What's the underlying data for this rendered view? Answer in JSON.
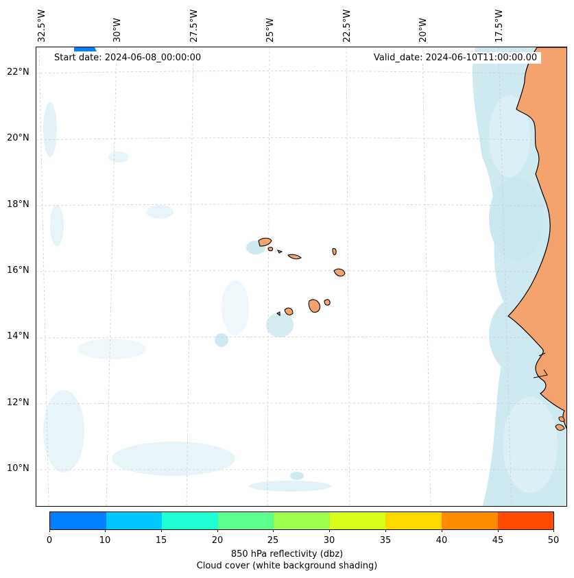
{
  "map": {
    "start_label": "Start date: 2024-06-08_00:00:00",
    "valid_label": "Valid_date: 2024-06-10T11:00:00.00",
    "longitude_labels": [
      "32.5°W",
      "30°W",
      "27.5°W",
      "25°W",
      "22.5°W",
      "20°W",
      "17.5°W"
    ],
    "latitude_labels": [
      "22°N",
      "20°N",
      "18°N",
      "16°N",
      "14°N",
      "12°N",
      "10°N"
    ],
    "land_color": "#f4a36c",
    "cloud_color": "#a9d8e6",
    "gridline_color": "#cccccc"
  },
  "colorbar": {
    "ticks": [
      "0",
      "10",
      "15",
      "20",
      "25",
      "30",
      "35",
      "40",
      "45",
      "50"
    ],
    "colors": [
      "#0080ff",
      "#00c8ff",
      "#1effd4",
      "#5cff8c",
      "#9cff4c",
      "#d8ff1a",
      "#ffd800",
      "#ff8c00",
      "#ff4c00"
    ],
    "label_line1": "850 hPa reflectivity (dbz)",
    "label_line2": "Cloud cover (white background shading)"
  }
}
